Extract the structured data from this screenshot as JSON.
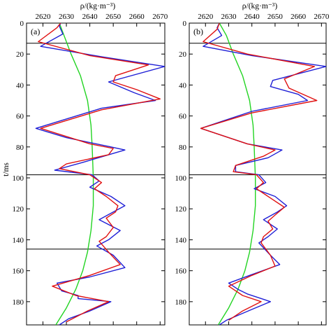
{
  "figure": {
    "y_axis_title": "t/ms",
    "x_axis_title": "ρ/(kg·m⁻³)"
  },
  "colors": {
    "blue": "#1f1fd6",
    "red": "#e01010",
    "green": "#22d422",
    "frame": "#000000"
  },
  "chart_data": [
    {
      "type": "line",
      "panel_label": "(a)",
      "xlabel": "ρ/(kg·m⁻³)",
      "ylabel": "t/ms",
      "xlim": [
        2613,
        2672
      ],
      "ylim": [
        0,
        195
      ],
      "x_ticks": [
        2620,
        2630,
        2640,
        2650,
        2660,
        2670
      ],
      "y_ticks": [
        0,
        20,
        40,
        60,
        80,
        100,
        120,
        140,
        160,
        180
      ],
      "y_inverted": true,
      "boundary_lines_t": [
        13,
        98,
        146
      ],
      "series": [
        {
          "color": "blue",
          "points": [
            [
              2627.5,
              0
            ],
            [
              2627,
              2
            ],
            [
              2628.5,
              7
            ],
            [
              2619,
              15
            ],
            [
              2646,
              22
            ],
            [
              2672,
              28
            ],
            [
              2648,
              38
            ],
            [
              2659,
              45
            ],
            [
              2668,
              50
            ],
            [
              2645,
              55
            ],
            [
              2617,
              68
            ],
            [
              2630,
              74
            ],
            [
              2649,
              80
            ],
            [
              2655,
              82
            ],
            [
              2637,
              90
            ],
            [
              2625,
              95
            ],
            [
              2641,
              98
            ],
            [
              2644,
              102
            ],
            [
              2640,
              106
            ],
            [
              2649,
              112
            ],
            [
              2655,
              118
            ],
            [
              2650,
              122
            ],
            [
              2644,
              127
            ],
            [
              2653,
              134
            ],
            [
              2648,
              140
            ],
            [
              2643,
              144
            ],
            [
              2650,
              150
            ],
            [
              2655,
              158
            ],
            [
              2640,
              164
            ],
            [
              2626,
              168
            ],
            [
              2628,
              173
            ],
            [
              2635,
              176
            ],
            [
              2635,
              178
            ],
            [
              2649,
              180
            ],
            [
              2640,
              186
            ],
            [
              2631,
              191
            ],
            [
              2627,
              195
            ]
          ]
        },
        {
          "color": "red",
          "points": [
            [
              2627.5,
              0
            ],
            [
              2626,
              3
            ],
            [
              2618,
              12
            ],
            [
              2640,
              21
            ],
            [
              2665,
              27
            ],
            [
              2651,
              34
            ],
            [
              2650,
              38
            ],
            [
              2660,
              43
            ],
            [
              2670,
              49
            ],
            [
              2645,
              56
            ],
            [
              2619,
              68
            ],
            [
              2640,
              78
            ],
            [
              2650,
              81
            ],
            [
              2648,
              85
            ],
            [
              2630,
              91
            ],
            [
              2627,
              94
            ],
            [
              2640,
              98
            ],
            [
              2645,
              103
            ],
            [
              2642,
              107
            ],
            [
              2647,
              112
            ],
            [
              2652,
              118
            ],
            [
              2651,
              122
            ],
            [
              2647,
              126
            ],
            [
              2650,
              132
            ],
            [
              2647,
              138
            ],
            [
              2644,
              141
            ],
            [
              2648,
              148
            ],
            [
              2653,
              156
            ],
            [
              2640,
              163
            ],
            [
              2624,
              170
            ],
            [
              2634,
              176
            ],
            [
              2648,
              180
            ],
            [
              2639,
              186
            ],
            [
              2630,
              193
            ]
          ]
        },
        {
          "color": "green",
          "points": [
            [
              2627,
              0
            ],
            [
              2629,
              8
            ],
            [
              2632,
              20
            ],
            [
              2636,
              34
            ],
            [
              2639,
              50
            ],
            [
              2640.5,
              66
            ],
            [
              2641,
              80
            ],
            [
              2641.5,
              100
            ],
            [
              2641.5,
              118
            ],
            [
              2640.5,
              134
            ],
            [
              2639,
              148
            ],
            [
              2637,
              160
            ],
            [
              2634,
              172
            ],
            [
              2630,
              184
            ],
            [
              2625.5,
              195
            ]
          ]
        }
      ]
    },
    {
      "type": "line",
      "panel_label": "(b)",
      "xlabel": "ρ/(kg·m⁻³)",
      "ylabel": "t/ms",
      "xlim": [
        2613,
        2672
      ],
      "ylim": [
        0,
        195
      ],
      "x_ticks": [
        2620,
        2630,
        2640,
        2650,
        2660,
        2670
      ],
      "y_ticks": [
        0,
        20,
        40,
        60,
        80,
        100,
        120,
        140,
        160,
        180
      ],
      "y_inverted": true,
      "boundary_lines_t": [
        13,
        98,
        146
      ],
      "series": [
        {
          "color": "blue",
          "points": [
            [
              2626,
              0
            ],
            [
              2625,
              3
            ],
            [
              2627,
              8
            ],
            [
              2619,
              15
            ],
            [
              2640,
              21
            ],
            [
              2672,
              28
            ],
            [
              2649,
              37
            ],
            [
              2648,
              41
            ],
            [
              2660,
              46
            ],
            [
              2664,
              50
            ],
            [
              2640,
              57
            ],
            [
              2618,
              68
            ],
            [
              2638,
              78
            ],
            [
              2653,
              82
            ],
            [
              2647,
              87
            ],
            [
              2633,
              92
            ],
            [
              2633,
              96
            ],
            [
              2643,
              98
            ],
            [
              2646,
              103
            ],
            [
              2641,
              107
            ],
            [
              2650,
              112
            ],
            [
              2655,
              118
            ],
            [
              2651,
              122
            ],
            [
              2645,
              127
            ],
            [
              2651,
              133
            ],
            [
              2647,
              138
            ],
            [
              2643,
              142
            ],
            [
              2648,
              150
            ],
            [
              2652,
              156
            ],
            [
              2639,
              163
            ],
            [
              2630,
              168
            ],
            [
              2634,
              172
            ],
            [
              2638,
              175
            ],
            [
              2648,
              180
            ],
            [
              2640,
              185
            ],
            [
              2629,
              192
            ],
            [
              2626,
              195
            ]
          ]
        },
        {
          "color": "red",
          "points": [
            [
              2626,
              0
            ],
            [
              2625,
              4
            ],
            [
              2619,
              12
            ],
            [
              2638,
              20
            ],
            [
              2667,
              28
            ],
            [
              2654,
              36
            ],
            [
              2656,
              42
            ],
            [
              2668,
              50
            ],
            [
              2640,
              58
            ],
            [
              2618,
              68
            ],
            [
              2638,
              78
            ],
            [
              2650,
              82
            ],
            [
              2645,
              86
            ],
            [
              2633,
              92
            ],
            [
              2632,
              96
            ],
            [
              2642,
              98
            ],
            [
              2645,
              103
            ],
            [
              2642,
              107
            ],
            [
              2648,
              113
            ],
            [
              2654,
              119
            ],
            [
              2650,
              124
            ],
            [
              2647,
              128
            ],
            [
              2649,
              133
            ],
            [
              2645,
              138
            ],
            [
              2644,
              142
            ],
            [
              2648,
              150
            ],
            [
              2650,
              157
            ],
            [
              2640,
              163
            ],
            [
              2630,
              170
            ],
            [
              2636,
              176
            ],
            [
              2644,
              180
            ],
            [
              2636,
              186
            ],
            [
              2630,
              192
            ]
          ]
        },
        {
          "color": "green",
          "points": [
            [
              2626,
              0
            ],
            [
              2629,
              8
            ],
            [
              2632,
              20
            ],
            [
              2636,
              34
            ],
            [
              2639,
              50
            ],
            [
              2640.5,
              66
            ],
            [
              2641,
              80
            ],
            [
              2641.5,
              100
            ],
            [
              2641.5,
              118
            ],
            [
              2640.5,
              134
            ],
            [
              2639,
              148
            ],
            [
              2637,
              160
            ],
            [
              2634,
              172
            ],
            [
              2630,
              184
            ],
            [
              2625.5,
              195
            ]
          ]
        }
      ]
    }
  ]
}
